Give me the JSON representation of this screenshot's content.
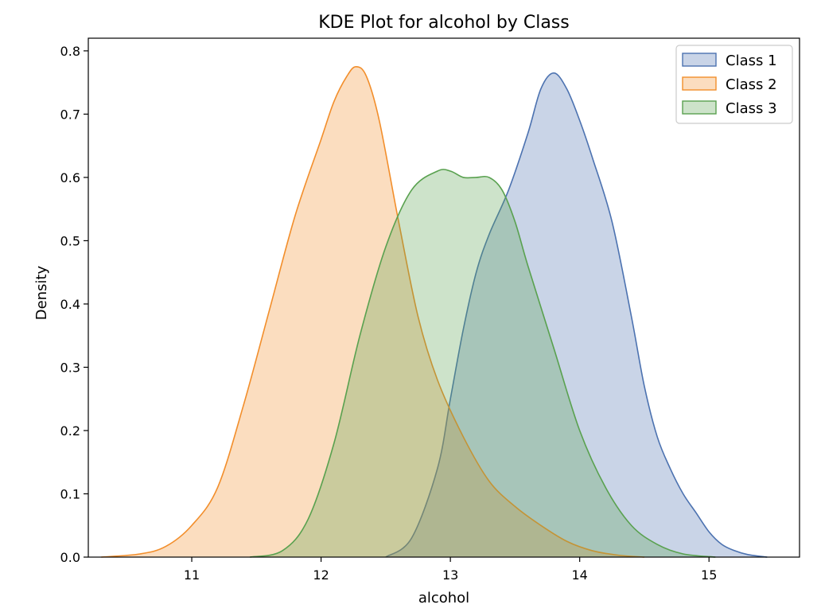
{
  "chart_data": {
    "type": "area",
    "title": "KDE Plot for alcohol by Class",
    "xlabel": "alcohol",
    "ylabel": "Density",
    "xlim": [
      10.2,
      15.7
    ],
    "ylim": [
      0.0,
      0.82
    ],
    "xticks": [
      11,
      12,
      13,
      14,
      15
    ],
    "yticks": [
      0.0,
      0.1,
      0.2,
      0.3,
      0.4,
      0.5,
      0.6,
      0.7,
      0.8
    ],
    "xtick_labels": [
      "11",
      "12",
      "13",
      "14",
      "15"
    ],
    "ytick_labels": [
      "0.0",
      "0.1",
      "0.2",
      "0.3",
      "0.4",
      "0.5",
      "0.6",
      "0.7",
      "0.8"
    ],
    "grid": false,
    "legend_position": "top-right",
    "series": [
      {
        "name": "Class 1",
        "color": "#4c72b0",
        "fill": "#c6d7e9",
        "x": [
          12.5,
          12.7,
          12.9,
          13.0,
          13.1,
          13.2,
          13.3,
          13.45,
          13.6,
          13.7,
          13.8,
          13.9,
          14.0,
          14.1,
          14.25,
          14.4,
          14.5,
          14.6,
          14.7,
          14.8,
          14.9,
          15.0,
          15.1,
          15.2,
          15.3,
          15.45
        ],
        "y": [
          0.0,
          0.03,
          0.14,
          0.25,
          0.36,
          0.45,
          0.51,
          0.58,
          0.67,
          0.74,
          0.765,
          0.74,
          0.69,
          0.63,
          0.53,
          0.38,
          0.27,
          0.19,
          0.14,
          0.1,
          0.07,
          0.04,
          0.02,
          0.01,
          0.004,
          0.0
        ]
      },
      {
        "name": "Class 2",
        "color": "#f28e2b",
        "fill": "#fbd5b7",
        "x": [
          10.3,
          10.6,
          10.8,
          11.0,
          11.2,
          11.4,
          11.6,
          11.8,
          12.0,
          12.1,
          12.2,
          12.27,
          12.35,
          12.45,
          12.6,
          12.75,
          12.9,
          13.1,
          13.3,
          13.5,
          13.7,
          13.9,
          14.1,
          14.3,
          14.5
        ],
        "y": [
          0.0,
          0.005,
          0.017,
          0.05,
          0.11,
          0.24,
          0.39,
          0.54,
          0.66,
          0.72,
          0.76,
          0.775,
          0.76,
          0.69,
          0.53,
          0.38,
          0.28,
          0.19,
          0.12,
          0.08,
          0.05,
          0.025,
          0.01,
          0.003,
          0.0
        ]
      },
      {
        "name": "Class 3",
        "color": "#59a14f",
        "fill": "#cfe5c9",
        "x": [
          11.45,
          11.7,
          11.9,
          12.1,
          12.3,
          12.5,
          12.7,
          12.9,
          13.0,
          13.1,
          13.2,
          13.3,
          13.4,
          13.5,
          13.6,
          13.8,
          14.0,
          14.2,
          14.4,
          14.6,
          14.8,
          15.05
        ],
        "y": [
          0.0,
          0.01,
          0.06,
          0.18,
          0.35,
          0.49,
          0.58,
          0.61,
          0.61,
          0.6,
          0.6,
          0.6,
          0.58,
          0.53,
          0.46,
          0.33,
          0.2,
          0.11,
          0.05,
          0.02,
          0.005,
          0.0
        ]
      }
    ]
  }
}
